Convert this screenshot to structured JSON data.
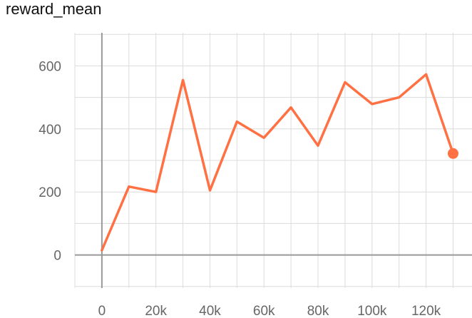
{
  "chart_data": {
    "type": "line",
    "title": "reward_mean",
    "xlabel": "",
    "ylabel": "",
    "xlim": [
      -10000,
      137000
    ],
    "ylim": [
      -105,
      705
    ],
    "x_ticks": [
      0,
      20000,
      40000,
      60000,
      80000,
      100000,
      120000
    ],
    "x_tick_labels": [
      "0",
      "20k",
      "40k",
      "60k",
      "80k",
      "100k",
      "120k"
    ],
    "x_minor_ticks": [
      -10000,
      10000,
      30000,
      50000,
      70000,
      90000,
      110000,
      130000
    ],
    "y_ticks": [
      0,
      200,
      400,
      600
    ],
    "y_tick_labels": [
      "0",
      "200",
      "400",
      "600"
    ],
    "y_minor_ticks": [
      -100,
      100,
      300,
      500,
      700
    ],
    "grid": true,
    "series": [
      {
        "color": "#ff7043",
        "x": [
          0,
          10000,
          20000,
          30000,
          40000,
          50000,
          60000,
          70000,
          80000,
          90000,
          100000,
          110000,
          120000,
          130000
        ],
        "y": [
          15,
          217,
          200,
          555,
          205,
          423,
          372,
          468,
          347,
          548,
          479,
          500,
          573,
          322
        ]
      }
    ]
  }
}
